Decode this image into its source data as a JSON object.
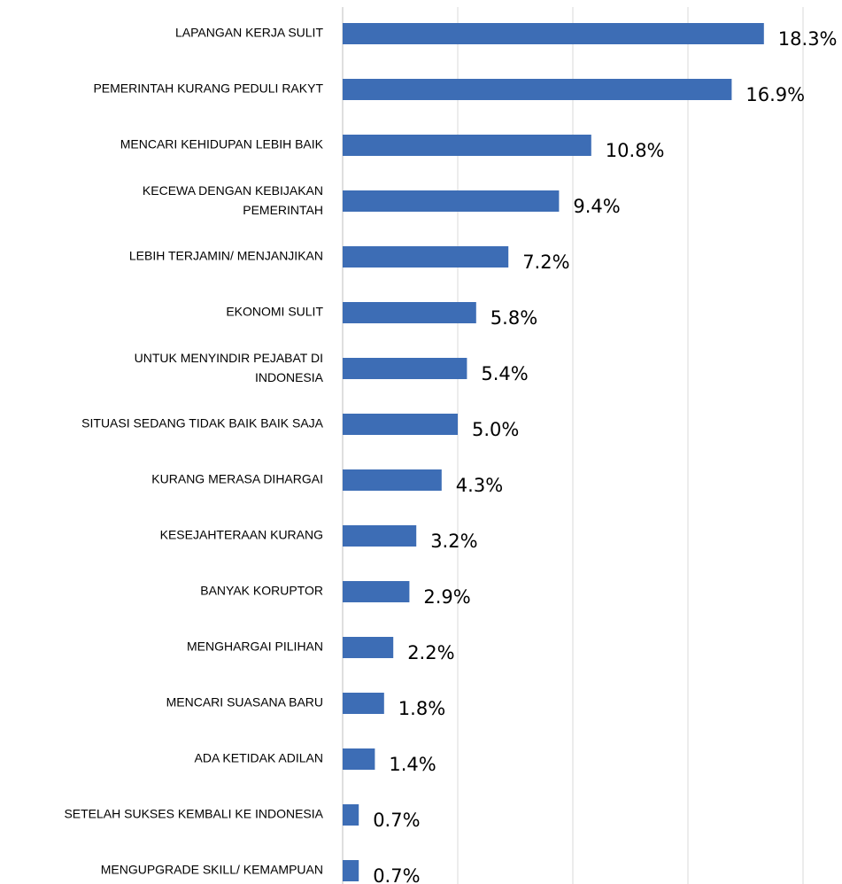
{
  "chart_data": {
    "type": "bar",
    "orientation": "horizontal",
    "categories": [
      "LAPANGAN KERJA SULIT",
      "PEMERINTAH KURANG PEDULI RAKYT",
      "MENCARI KEHIDUPAN LEBIH BAIK",
      "KECEWA DENGAN KEBIJAKAN\nPEMERINTAH",
      "LEBIH TERJAMIN/ MENJANJIKAN",
      "EKONOMI SULIT",
      "UNTUK MENYINDIR PEJABAT DI\nINDONESIA",
      "SITUASI SEDANG TIDAK BAIK BAIK SAJA",
      "KURANG MERASA DIHARGAI",
      "KESEJAHTERAAN KURANG",
      "BANYAK KORUPTOR",
      "MENGHARGAI PILIHAN",
      "MENCARI SUASANA BARU",
      "ADA KETIDAK ADILAN",
      "SETELAH SUKSES KEMBALI KE INDONESIA",
      "MENGUPGRADE SKILL/ KEMAMPUAN"
    ],
    "values": [
      18.3,
      16.9,
      10.8,
      9.4,
      7.2,
      5.8,
      5.4,
      5.0,
      4.3,
      3.2,
      2.9,
      2.2,
      1.8,
      1.4,
      0.7,
      0.7
    ],
    "value_labels": [
      "18.3%",
      "16.9%",
      "10.8%",
      "9.4%",
      "7.2%",
      "5.8%",
      "5.4%",
      "5.0%",
      "4.3%",
      "3.2%",
      "2.9%",
      "2.2%",
      "1.8%",
      "1.4%",
      "0.7%",
      "0.7%"
    ],
    "color": "#3d6db5",
    "xlim": [
      0,
      20
    ],
    "xticks": [
      0,
      5,
      10,
      15,
      20
    ],
    "grid": true
  }
}
